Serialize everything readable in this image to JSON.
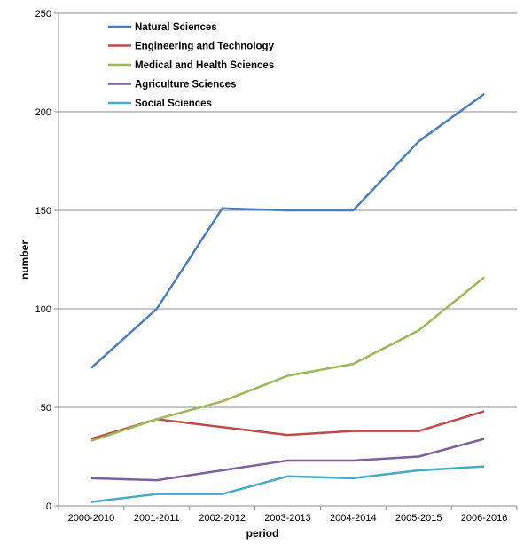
{
  "chart_data": {
    "type": "line",
    "title": "",
    "xlabel": "period",
    "ylabel": "number",
    "categories": [
      "2000-2010",
      "2001-2011",
      "2002-2012",
      "2003-2013",
      "2004-2014",
      "2005-2015",
      "2006-2016"
    ],
    "ylim": [
      0,
      250
    ],
    "yticks": [
      0,
      50,
      100,
      150,
      200,
      250
    ],
    "grid": "horizontal",
    "legend": "top-left",
    "series": [
      {
        "name": "Natural Sciences",
        "color": "#4a7ebb",
        "values": [
          70,
          100,
          151,
          150,
          150,
          185,
          209
        ]
      },
      {
        "name": "Engineering and Technology",
        "color": "#be4b48",
        "values": [
          34,
          44,
          40,
          36,
          38,
          38,
          48
        ]
      },
      {
        "name": "Medical and Health Sciences",
        "color": "#98b954",
        "values": [
          33,
          44,
          53,
          66,
          72,
          89,
          116
        ]
      },
      {
        "name": "Agriculture Sciences",
        "color": "#7d5fa0",
        "values": [
          14,
          13,
          18,
          23,
          23,
          25,
          34
        ]
      },
      {
        "name": "Social Sciences",
        "color": "#46aac5",
        "values": [
          2,
          6,
          6,
          15,
          14,
          18,
          20
        ]
      }
    ]
  }
}
